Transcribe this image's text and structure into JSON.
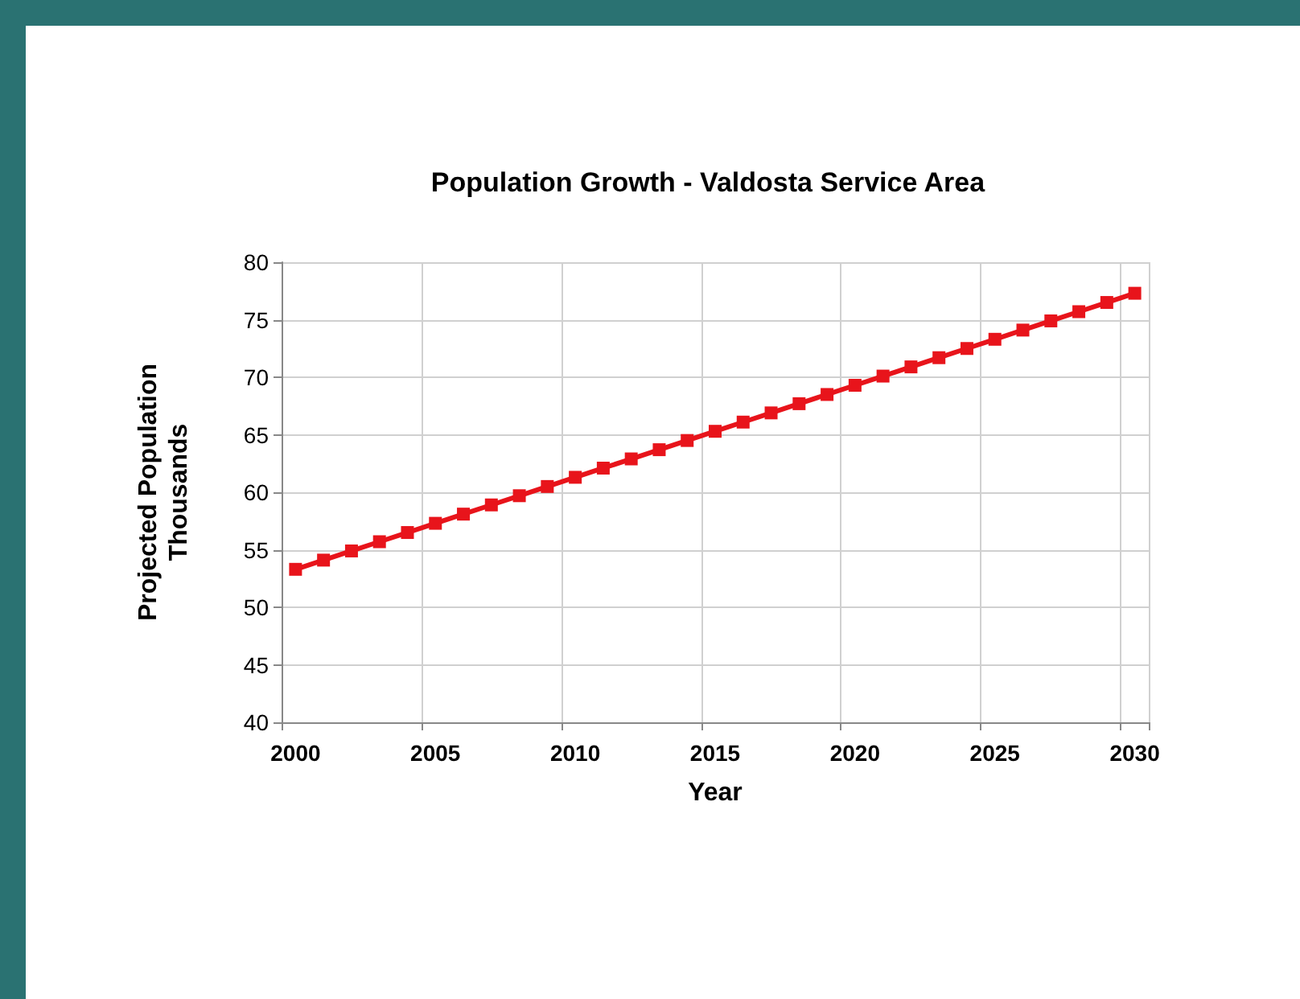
{
  "chart_data": {
    "type": "line",
    "title": "Population Growth - Valdosta Service Area",
    "xlabel": "Year",
    "ylabel": "Projected Population\nThousands",
    "categories": [
      "2000",
      null,
      null,
      null,
      null,
      "2005",
      null,
      null,
      null,
      null,
      "2010",
      null,
      null,
      null,
      null,
      "2015",
      null,
      null,
      null,
      null,
      "2020",
      null,
      null,
      null,
      null,
      "2025",
      null,
      null,
      null,
      null,
      "2030"
    ],
    "series": [
      {
        "color": "#e8141b",
        "values": [
          53.3,
          54.1,
          54.9,
          55.7,
          56.5,
          57.3,
          58.1,
          58.9,
          59.7,
          60.5,
          61.3,
          62.1,
          62.9,
          63.7,
          64.5,
          65.3,
          66.1,
          66.9,
          67.7,
          68.5,
          69.3,
          70.1,
          70.9,
          71.7,
          72.5,
          73.3,
          74.1,
          74.9,
          75.7,
          76.5,
          77.3
        ]
      }
    ],
    "ylim": [
      40,
      80
    ],
    "yticks": [
      40,
      45,
      50,
      55,
      60,
      65,
      70,
      75,
      80
    ],
    "grid": true,
    "marker": "square",
    "line_style": "solid"
  }
}
